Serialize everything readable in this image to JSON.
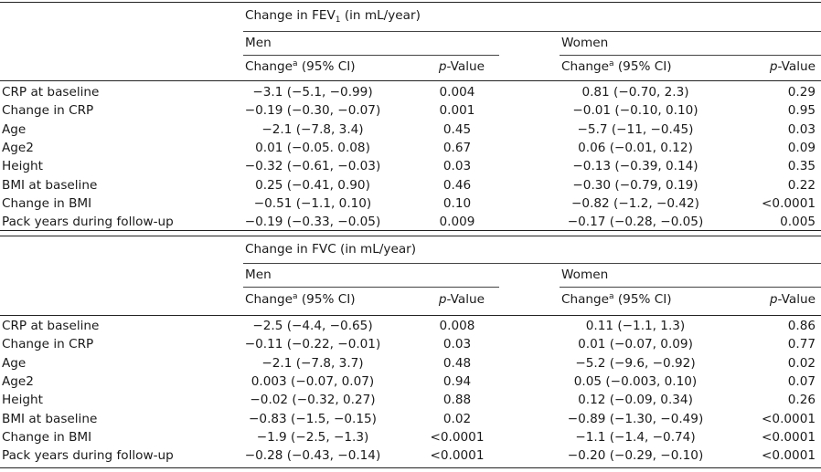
{
  "panels": [
    {
      "title_prefix": "Change in FEV",
      "title_sub": "1",
      "title_suffix": " (in mL/year)",
      "groups": [
        "Men",
        "Women"
      ],
      "col_change_label": "Change",
      "col_change_sup": "a",
      "col_ci_label": " (95% CI)",
      "col_p_italic": "p",
      "col_p_rest": "-Value",
      "rows": [
        {
          "label": "CRP at baseline",
          "label_sup": "",
          "men_change": "−3.1 (−5.1, −0.99)",
          "men_p": "0.004",
          "women_change": "0.81 (−0.70, 2.3)",
          "women_p": "0.29"
        },
        {
          "label": "Change in CRP",
          "label_sup": "",
          "men_change": "−0.19 (−0.30, −0.07)",
          "men_p": "0.001",
          "women_change": "−0.01 (−0.10, 0.10)",
          "women_p": "0.95"
        },
        {
          "label": "Age",
          "label_sup": "",
          "men_change": "−2.1 (−7.8, 3.4)",
          "men_p": "0.45",
          "women_change": "−5.7 (−11, −0.45)",
          "women_p": "0.03"
        },
        {
          "label": "Age",
          "label_sup": "2",
          "men_change": "0.01 (−0.05. 0.08)",
          "men_p": "0.67",
          "women_change": "0.06 (−0.01, 0.12)",
          "women_p": "0.09"
        },
        {
          "label": "Height",
          "label_sup": "",
          "men_change": "−0.32 (−0.61, −0.03)",
          "men_p": "0.03",
          "women_change": "−0.13 (−0.39, 0.14)",
          "women_p": "0.35"
        },
        {
          "label": "BMI at baseline",
          "label_sup": "",
          "men_change": "0.25 (−0.41, 0.90)",
          "men_p": "0.46",
          "women_change": "−0.30 (−0.79, 0.19)",
          "women_p": "0.22"
        },
        {
          "label": "Change in BMI",
          "label_sup": "",
          "men_change": "−0.51 (−1.1, 0.10)",
          "men_p": "0.10",
          "women_change": "−0.82 (−1.2, −0.42)",
          "women_p": "<0.0001"
        },
        {
          "label": "Pack years during follow-up",
          "label_sup": "",
          "men_change": "−0.19 (−0.33, −0.05)",
          "men_p": "0.009",
          "women_change": "−0.17 (−0.28, −0.05)",
          "women_p": "0.005"
        }
      ]
    },
    {
      "title_prefix": "Change in FVC (in mL/year)",
      "title_sub": "",
      "title_suffix": "",
      "groups": [
        "Men",
        "Women"
      ],
      "col_change_label": "Change",
      "col_change_sup": "a",
      "col_ci_label": " (95% CI)",
      "col_p_italic": "p",
      "col_p_rest": "-Value",
      "rows": [
        {
          "label": "CRP at baseline",
          "label_sup": "",
          "men_change": "−2.5 (−4.4, −0.65)",
          "men_p": "0.008",
          "women_change": "0.11 (−1.1, 1.3)",
          "women_p": "0.86"
        },
        {
          "label": "Change in CRP",
          "label_sup": "",
          "men_change": "−0.11 (−0.22, −0.01)",
          "men_p": "0.03",
          "women_change": "0.01 (−0.07, 0.09)",
          "women_p": "0.77"
        },
        {
          "label": "Age",
          "label_sup": "",
          "men_change": "−2.1 (−7.8, 3.7)",
          "men_p": "0.48",
          "women_change": "−5.2 (−9.6, −0.92)",
          "women_p": "0.02"
        },
        {
          "label": "Age",
          "label_sup": "2",
          "men_change": "0.003 (−0.07, 0.07)",
          "men_p": "0.94",
          "women_change": "0.05 (−0.003, 0.10)",
          "women_p": "0.07"
        },
        {
          "label": "Height",
          "label_sup": "",
          "men_change": "−0.02 (−0.32, 0.27)",
          "men_p": "0.88",
          "women_change": "0.12 (−0.09, 0.34)",
          "women_p": "0.26"
        },
        {
          "label": "BMI at baseline",
          "label_sup": "",
          "men_change": "−0.83 (−1.5, −0.15)",
          "men_p": "0.02",
          "women_change": "−0.89 (−1.30, −0.49)",
          "women_p": "<0.0001"
        },
        {
          "label": "Change in BMI",
          "label_sup": "",
          "men_change": "−1.9 (−2.5, −1.3)",
          "men_p": "<0.0001",
          "women_change": "−1.1 (−1.4, −0.74)",
          "women_p": "<0.0001"
        },
        {
          "label": "Pack years during follow-up",
          "label_sup": "",
          "men_change": "−0.28 (−0.43, −0.14)",
          "men_p": "<0.0001",
          "women_change": "−0.20 (−0.29, −0.10)",
          "women_p": "<0.0001"
        }
      ]
    }
  ]
}
